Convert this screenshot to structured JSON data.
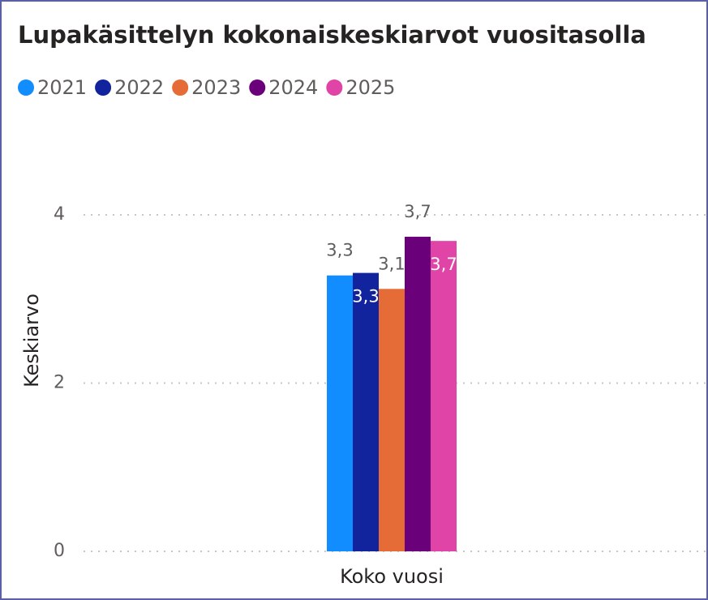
{
  "chart_data": {
    "type": "bar",
    "title": "Lupakäsittelyn kokonaiskeskiarvot vuositasolla",
    "y_label": "Keskiarvo",
    "categories": [
      "Koko vuosi"
    ],
    "series": [
      {
        "name": "2021",
        "color": "#118DFF",
        "values": [
          3.28
        ],
        "value_labels": [
          "3,3"
        ]
      },
      {
        "name": "2022",
        "color": "#12239E",
        "values": [
          3.31
        ],
        "value_labels": [
          "3,3"
        ]
      },
      {
        "name": "2023",
        "color": "#E66C37",
        "values": [
          3.12
        ],
        "value_labels": [
          "3,1"
        ]
      },
      {
        "name": "2024",
        "color": "#6B007B",
        "values": [
          3.74
        ],
        "value_labels": [
          "3,7"
        ]
      },
      {
        "name": "2025",
        "color": "#E044A7",
        "values": [
          3.69
        ],
        "value_labels": [
          "3,7"
        ]
      }
    ],
    "ylim": [
      0,
      4.8
    ],
    "yticks": [
      0,
      2,
      4
    ],
    "grid": true,
    "legend": "top-left"
  }
}
